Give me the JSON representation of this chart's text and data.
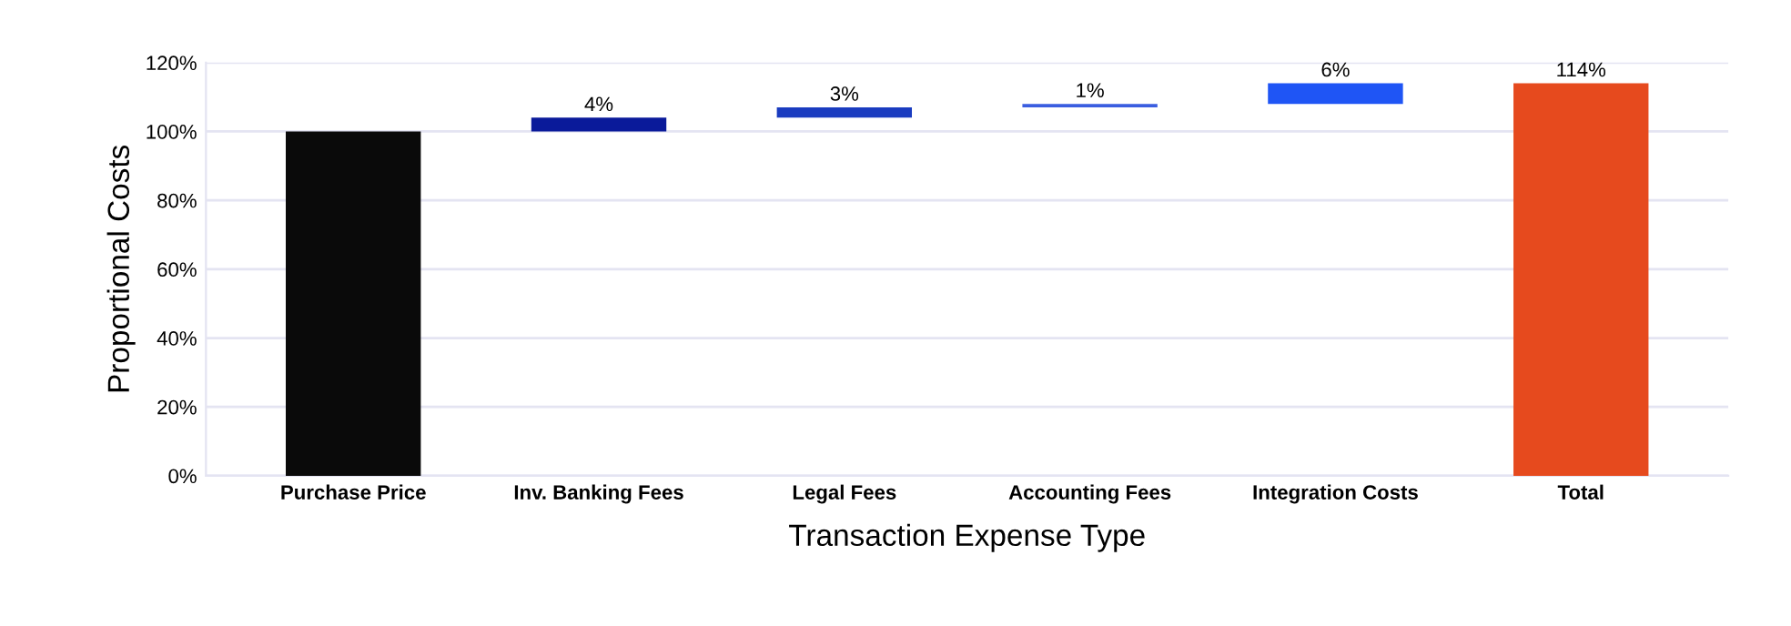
{
  "chart_data": {
    "type": "bar",
    "xlabel": "Transaction Expense Type",
    "ylabel": "Proportional Costs",
    "categories": [
      "Purchase Price",
      "Inv. Banking Fees",
      "Legal Fees",
      "Accounting Fees",
      "Integration Costs",
      "Total"
    ],
    "values": [
      100,
      4,
      3,
      1,
      6,
      114
    ],
    "base": [
      0,
      100,
      104,
      107,
      108,
      0
    ],
    "colors": [
      "#0a0a0a",
      "#0a1a9a",
      "#1a3cc0",
      "#3b5ee0",
      "#1f55f5",
      "#e64a1e"
    ],
    "value_labels": [
      null,
      "4%",
      "3%",
      "1%",
      "6%",
      "114%"
    ],
    "ylim": [
      0,
      120
    ],
    "yticks": [
      {
        "value": 0,
        "label": "0%"
      },
      {
        "value": 20,
        "label": "20%"
      },
      {
        "value": 40,
        "label": "40%"
      },
      {
        "value": 60,
        "label": "60%"
      },
      {
        "value": 80,
        "label": "80%"
      },
      {
        "value": 100,
        "label": "100%"
      },
      {
        "value": 120,
        "label": "120%"
      }
    ],
    "grid": "y"
  }
}
